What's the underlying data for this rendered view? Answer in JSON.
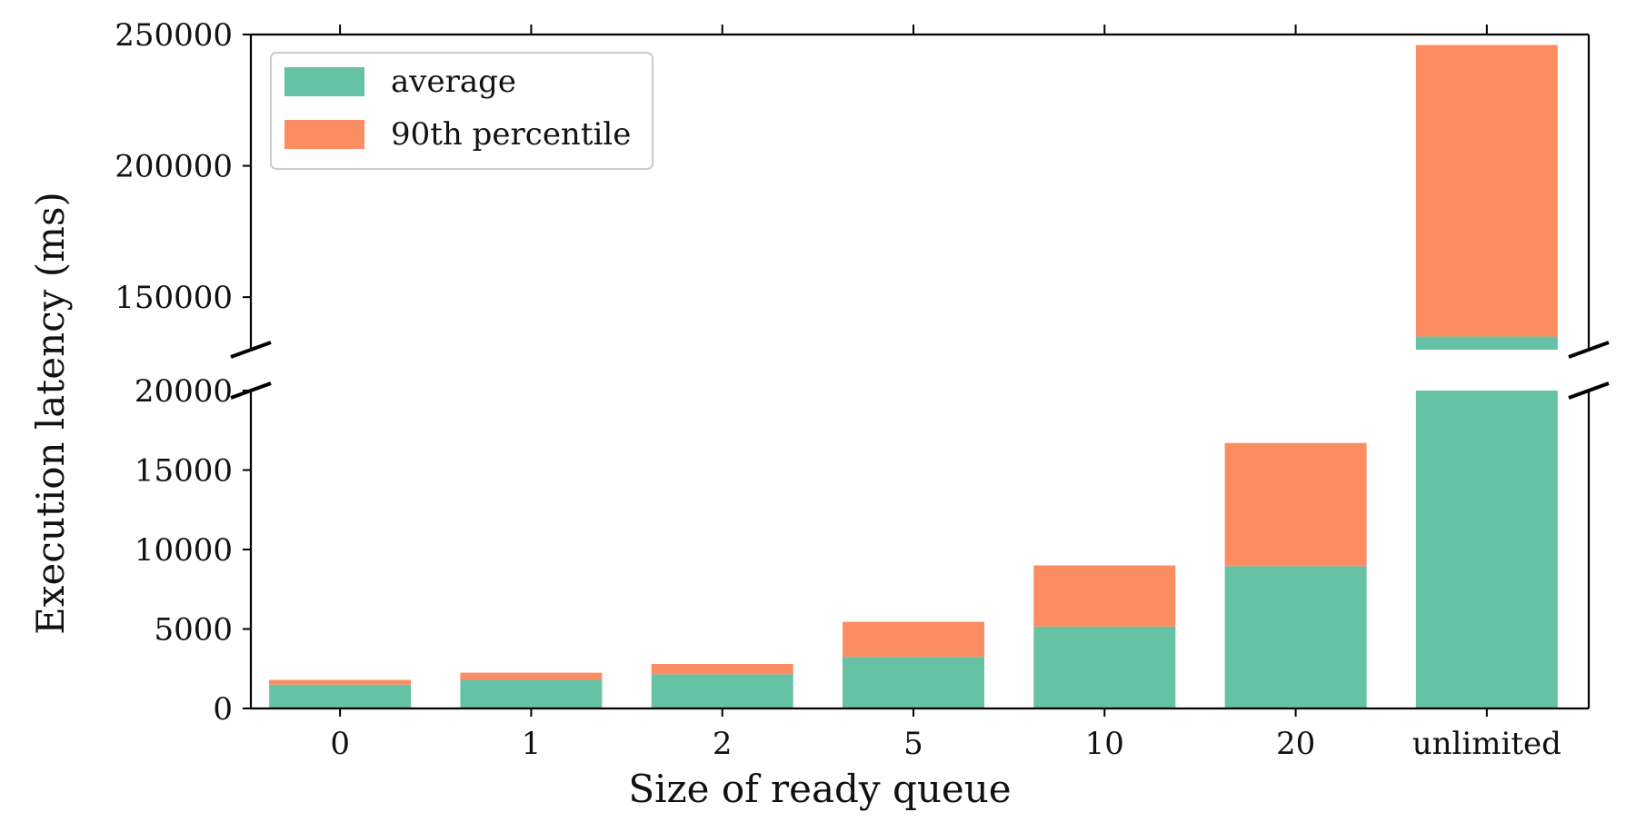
{
  "chart_data": {
    "type": "bar",
    "stacked": true,
    "broken_y_axis": true,
    "categories": [
      "0",
      "1",
      "2",
      "5",
      "10",
      "20",
      "unlimited"
    ],
    "series": [
      {
        "name": "average",
        "color": "#66c2a5",
        "values": [
          1500,
          1800,
          2150,
          3250,
          5150,
          8950,
          135000
        ]
      },
      {
        "name": "90th percentile",
        "color": "#fc8d62",
        "values": [
          300,
          450,
          650,
          2200,
          3850,
          7750,
          111000
        ]
      }
    ],
    "xlabel": "Size of ready queue",
    "ylabel": "Execution latency (ms)",
    "ylim_lower": [
      0,
      20000
    ],
    "ylim_upper": [
      130000,
      250000
    ],
    "yticks_lower": [
      "0",
      "5000",
      "10000",
      "15000",
      "20000"
    ],
    "yticks_upper": [
      "150000",
      "200000",
      "250000"
    ],
    "legend_position": "top-left",
    "grid": false
  }
}
